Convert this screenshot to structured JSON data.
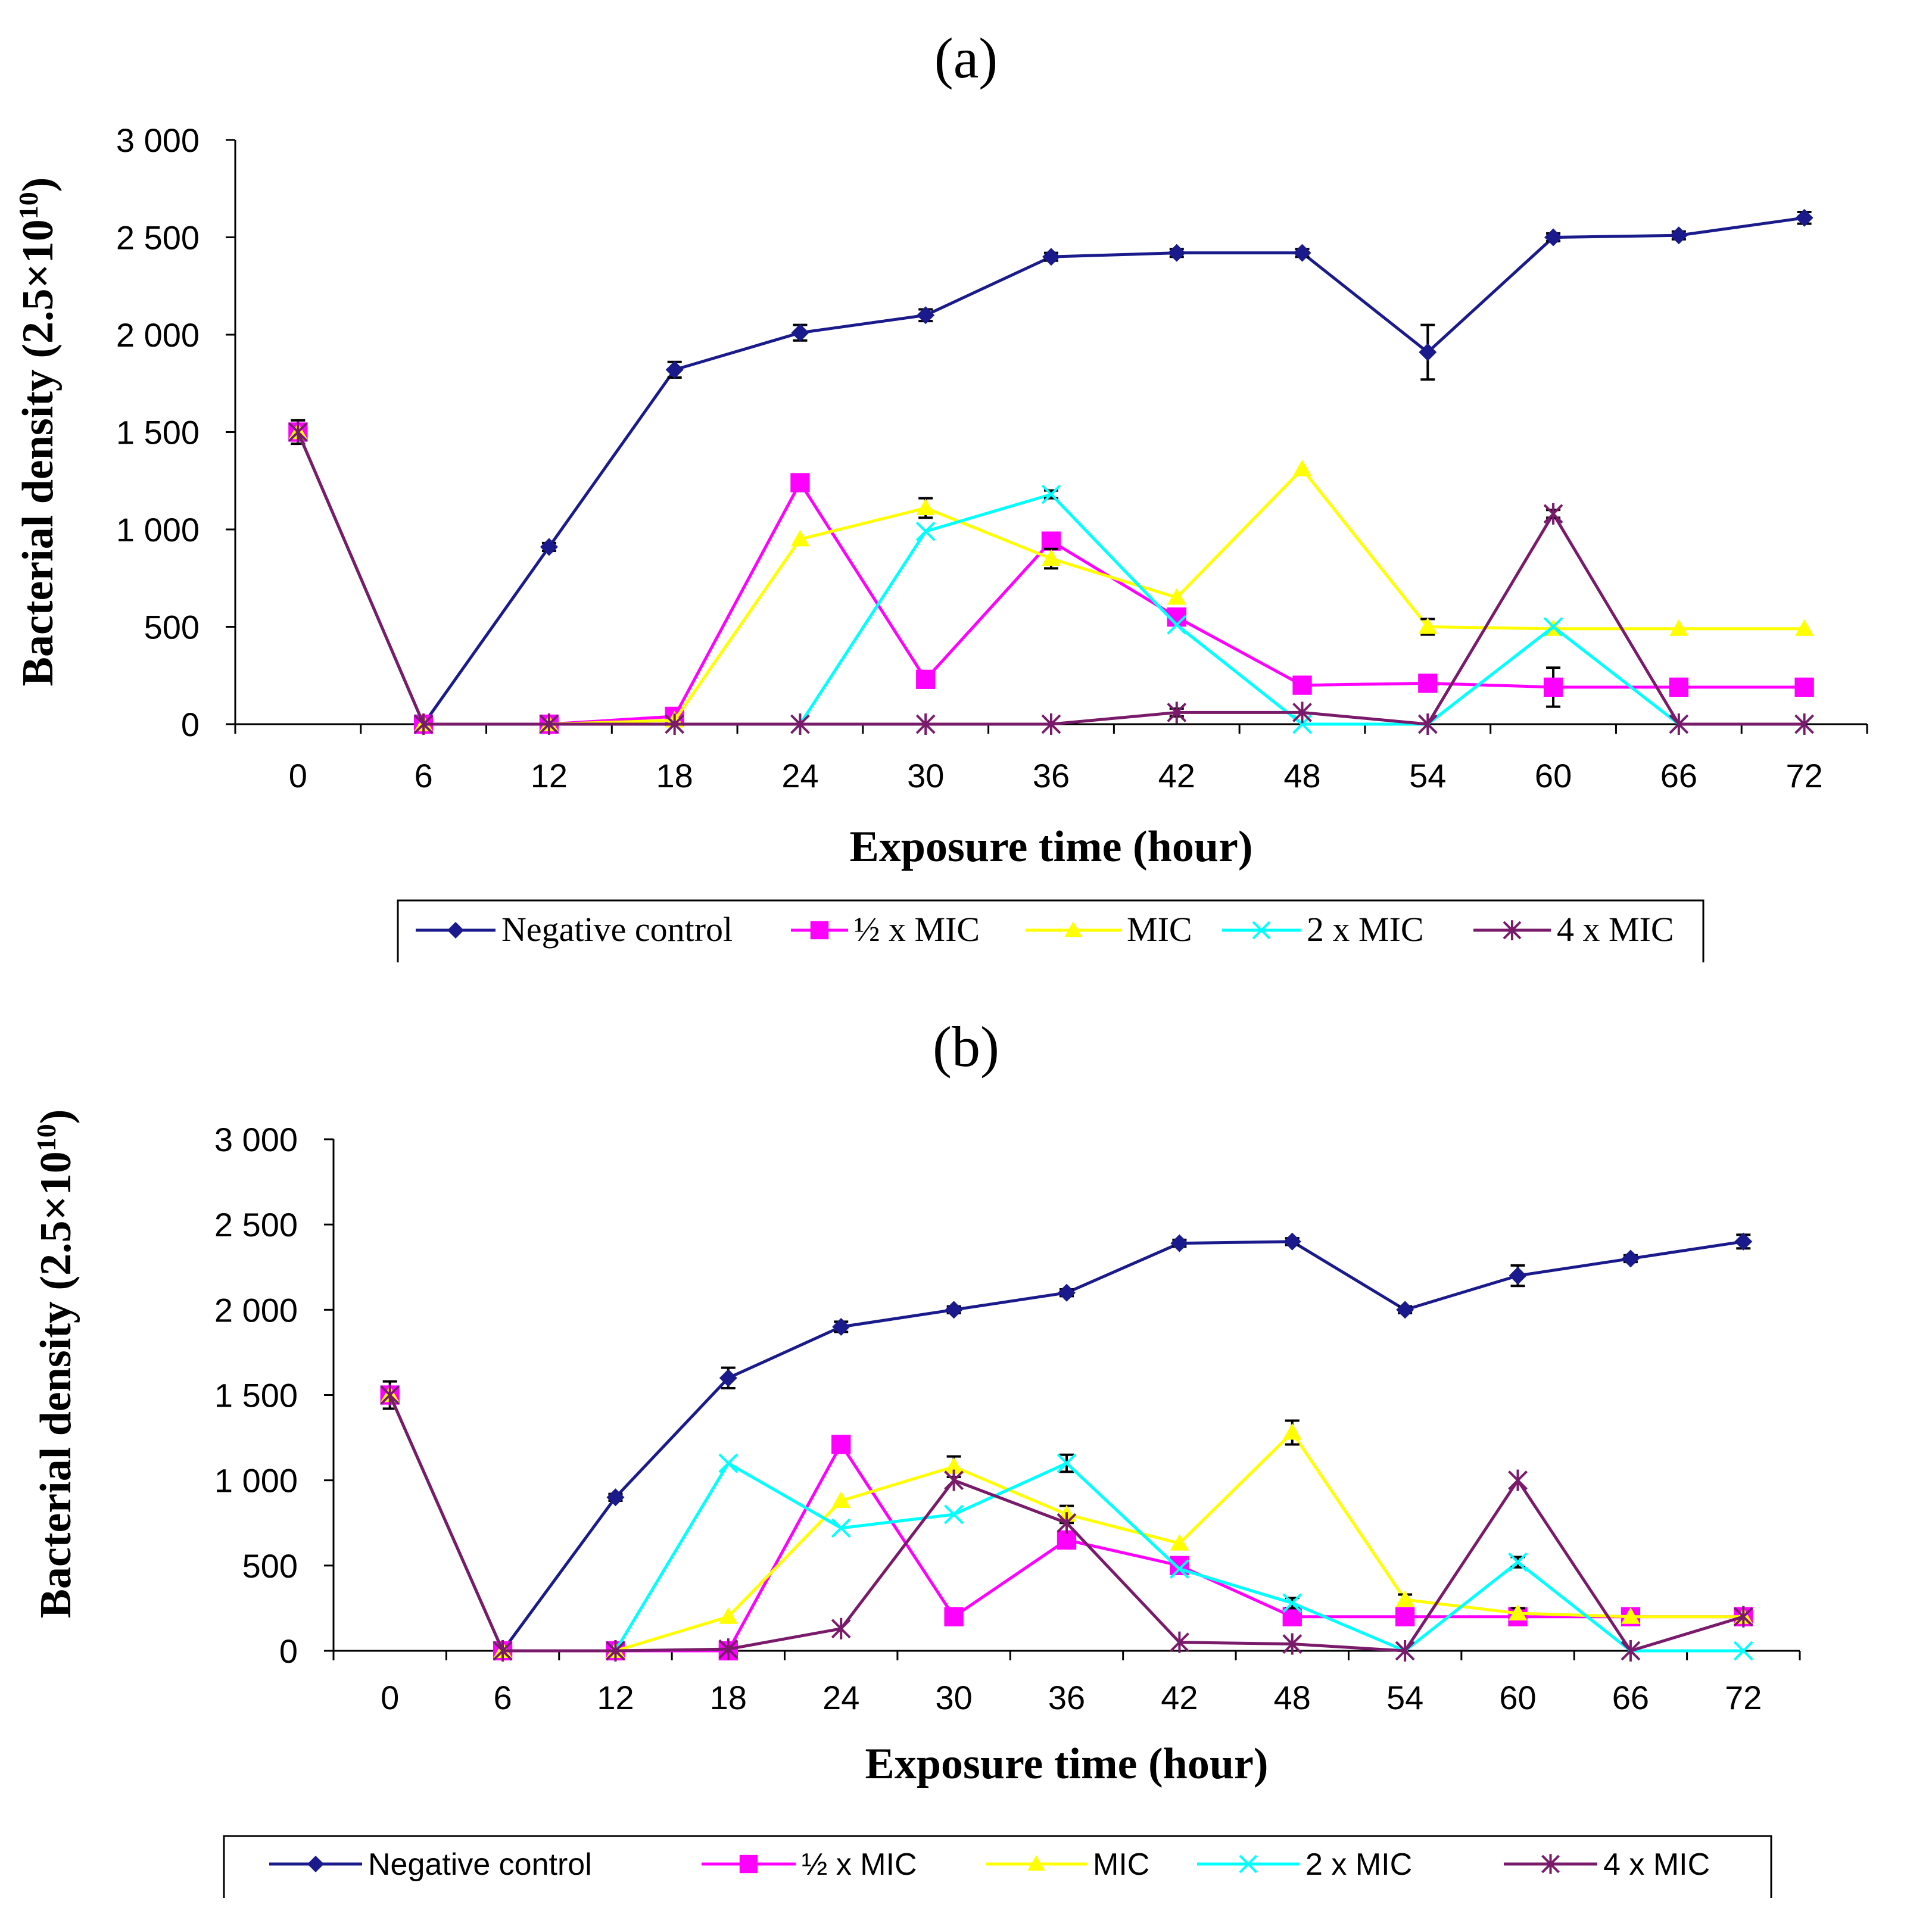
{
  "chart_data": [
    {
      "type": "line",
      "panel_label": "(a)",
      "xlabel": "Exposure time (hour)",
      "ylabel": "Bacterial density (2.5×10",
      "ylabel_exp": "10",
      "ylabel_close": ")",
      "x": [
        0,
        6,
        12,
        18,
        24,
        30,
        36,
        42,
        48,
        54,
        60,
        66,
        72
      ],
      "x_tick_labels": [
        "0",
        "6",
        "12",
        "18",
        "24",
        "30",
        "36",
        "42",
        "48",
        "54",
        "60",
        "66",
        "72"
      ],
      "ylim": [
        0,
        3000
      ],
      "y_tick_values": [
        0,
        500,
        1000,
        1500,
        2000,
        2500,
        3000
      ],
      "y_tick_labels": [
        "0",
        "500",
        "1 000",
        "1 500",
        "2 000",
        "2 500",
        "3 000"
      ],
      "grid": false,
      "legend_position": "bottom",
      "series": [
        {
          "name": "Negative control",
          "color": "#1a1a8c",
          "marker": "diamond",
          "values": [
            1500,
            0,
            910,
            1820,
            2010,
            2100,
            2400,
            2420,
            2420,
            1910,
            2500,
            2510,
            2600
          ],
          "errors": [
            60,
            0,
            20,
            40,
            40,
            30,
            20,
            20,
            20,
            140,
            20,
            20,
            30
          ]
        },
        {
          "name": "½ x MIC",
          "color": "#ff00ff",
          "marker": "square",
          "values": [
            1500,
            0,
            0,
            40,
            1240,
            230,
            940,
            550,
            200,
            210,
            190,
            190,
            190
          ],
          "errors": [
            0,
            0,
            0,
            0,
            0,
            0,
            0,
            0,
            0,
            0,
            100,
            0,
            0
          ]
        },
        {
          "name": "MIC",
          "color": "#ffff00",
          "marker": "triangle",
          "values": [
            1500,
            0,
            0,
            20,
            950,
            1110,
            850,
            650,
            1310,
            500,
            490,
            490,
            490
          ],
          "errors": [
            0,
            0,
            0,
            0,
            0,
            50,
            50,
            0,
            0,
            40,
            0,
            0,
            0
          ]
        },
        {
          "name": "2 x MIC",
          "color": "#00ffff",
          "marker": "x",
          "values": [
            1500,
            0,
            0,
            0,
            0,
            990,
            1180,
            510,
            0,
            0,
            500,
            0,
            0
          ],
          "errors": [
            0,
            0,
            0,
            0,
            0,
            0,
            20,
            0,
            0,
            0,
            0,
            0,
            0
          ]
        },
        {
          "name": "4 x MIC",
          "color": "#7a1a6a",
          "marker": "star",
          "values": [
            1500,
            0,
            0,
            0,
            0,
            0,
            0,
            60,
            60,
            0,
            1080,
            0,
            0
          ],
          "errors": [
            0,
            0,
            0,
            0,
            0,
            0,
            0,
            20,
            0,
            0,
            20,
            0,
            0
          ]
        }
      ]
    },
    {
      "type": "line",
      "panel_label": "(b)",
      "xlabel": "Exposure time (hour)",
      "ylabel": "Bacterial density (2.5×10",
      "ylabel_exp": "10",
      "ylabel_close": ")",
      "x": [
        0,
        6,
        12,
        18,
        24,
        30,
        36,
        42,
        48,
        54,
        60,
        66,
        72
      ],
      "x_tick_labels": [
        "0",
        "6",
        "12",
        "18",
        "24",
        "30",
        "36",
        "42",
        "48",
        "54",
        "60",
        "66",
        "72"
      ],
      "ylim": [
        0,
        3000
      ],
      "y_tick_values": [
        0,
        500,
        1000,
        1500,
        2000,
        2500,
        3000
      ],
      "y_tick_labels": [
        "0",
        "500",
        "1 000",
        "1 500",
        "2 000",
        "2 500",
        "3 000"
      ],
      "grid": false,
      "legend_position": "bottom",
      "series": [
        {
          "name": "Negative control",
          "color": "#1a1a8c",
          "marker": "diamond",
          "values": [
            1500,
            0,
            900,
            1600,
            1900,
            2000,
            2100,
            2390,
            2400,
            2000,
            2200,
            2300,
            2400
          ],
          "errors": [
            80,
            0,
            20,
            60,
            30,
            20,
            20,
            20,
            20,
            20,
            60,
            20,
            40
          ]
        },
        {
          "name": "½ x MIC",
          "color": "#ff00ff",
          "marker": "square",
          "values": [
            1500,
            0,
            0,
            0,
            1210,
            200,
            650,
            500,
            200,
            200,
            200,
            200,
            200
          ],
          "errors": [
            0,
            0,
            0,
            0,
            0,
            0,
            0,
            0,
            0,
            0,
            0,
            0,
            0
          ]
        },
        {
          "name": "MIC",
          "color": "#ffff00",
          "marker": "triangle",
          "values": [
            1500,
            0,
            0,
            200,
            880,
            1080,
            800,
            630,
            1280,
            300,
            220,
            200,
            200
          ],
          "errors": [
            0,
            0,
            0,
            0,
            0,
            60,
            50,
            0,
            70,
            30,
            30,
            0,
            0
          ]
        },
        {
          "name": "2 x MIC",
          "color": "#00ffff",
          "marker": "x",
          "values": [
            1500,
            0,
            0,
            1100,
            720,
            800,
            1100,
            480,
            280,
            0,
            520,
            0,
            0
          ],
          "errors": [
            0,
            0,
            0,
            0,
            0,
            0,
            50,
            0,
            30,
            0,
            30,
            0,
            0
          ]
        },
        {
          "name": "4 x MIC",
          "color": "#7a1a6a",
          "marker": "star",
          "values": [
            1500,
            0,
            0,
            10,
            130,
            1000,
            750,
            50,
            40,
            0,
            1000,
            0,
            200
          ],
          "errors": [
            0,
            0,
            0,
            0,
            0,
            0,
            0,
            0,
            0,
            0,
            0,
            0,
            0
          ]
        }
      ]
    }
  ]
}
